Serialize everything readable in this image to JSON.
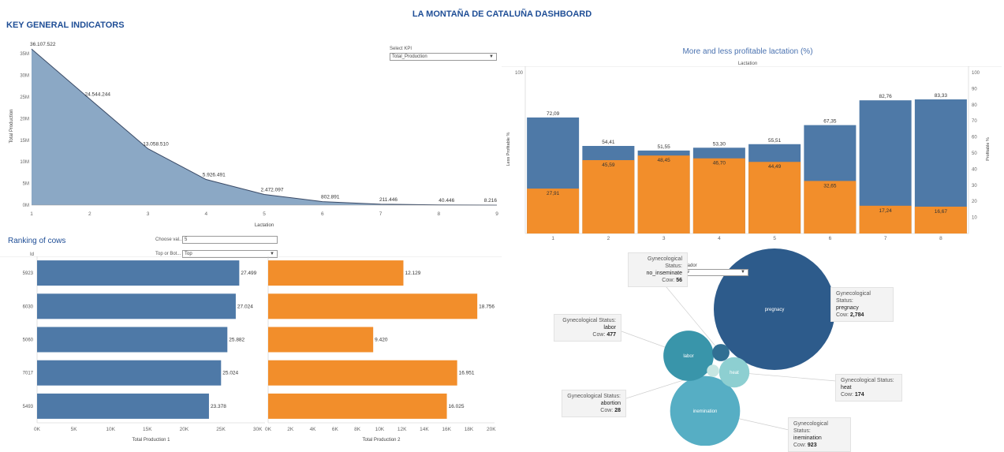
{
  "dashboard": {
    "title": "LA MONTAÑA DE CATALUÑA DASHBOARD"
  },
  "kpi_section": {
    "title": "KEY GENERAL INDICATORS",
    "select_label": "Select KPI",
    "select_value": "Total_Production"
  },
  "ranking_section": {
    "title": "Ranking of cows",
    "choose_label": "Choose val...",
    "choose_value": "5",
    "topbot_label": "Top or Bot...",
    "topbot_value": "Top",
    "id_header": "Id"
  },
  "lactation_section": {
    "title": "More and less profitable lactation (%)",
    "header": "Lactation"
  },
  "bubble_section": {
    "indicator_label": "Indicador",
    "indicator_value": "Cow",
    "field_label": "Gynecological Status:",
    "measure_label": "Cow:"
  },
  "chart_data": [
    {
      "type": "area",
      "x": [
        1,
        2,
        3,
        4,
        5,
        6,
        7,
        8,
        9
      ],
      "values": [
        36107522,
        24544244,
        13058510,
        5926491,
        2472097,
        802891,
        211446,
        40446,
        8216
      ],
      "value_labels": [
        "36.107.522",
        "24.544.244",
        "13.058.510",
        "5.926.491",
        "2.472.097",
        "802.891",
        "211.446",
        "40.446",
        "8.216"
      ],
      "xlabel": "Lactation",
      "ylabel": "Total Production",
      "x_ticks": [
        "1",
        "2",
        "3",
        "4",
        "5",
        "6",
        "7",
        "8",
        "9"
      ],
      "y_ticks": [
        "0M",
        "5M",
        "10M",
        "15M",
        "20M",
        "25M",
        "30M",
        "35M"
      ],
      "ylim": [
        0,
        36500000
      ],
      "color": "#8ba8c5",
      "line_color": "#3a4a66"
    },
    {
      "type": "bar",
      "categories": [
        "1",
        "2",
        "3",
        "4",
        "5",
        "6",
        "7",
        "8"
      ],
      "xlabel": "Lactation",
      "ylabel_left": "Less Profitable %",
      "ylabel_right": "Profitable %",
      "left_ticks": [
        "100"
      ],
      "right_ticks": [
        "10",
        "20",
        "30",
        "40",
        "50",
        "60",
        "70",
        "80",
        "90",
        "100"
      ],
      "ylim": [
        0,
        100
      ],
      "series": [
        {
          "name": "Profitable %",
          "color": "#4e79a7",
          "values": [
            72.09,
            54.41,
            51.55,
            53.3,
            55.51,
            67.35,
            82.76,
            83.33
          ],
          "labels": [
            "72,09",
            "54,41",
            "51,55",
            "53,30",
            "55,51",
            "67,35",
            "82,76",
            "83,33"
          ]
        },
        {
          "name": "Less Profitable %",
          "color": "#f28e2b",
          "values": [
            27.91,
            45.59,
            48.45,
            46.7,
            44.49,
            32.65,
            17.24,
            16.67
          ],
          "labels": [
            "27,91",
            "45,59",
            "48,45",
            "46,70",
            "44,49",
            "32,65",
            "17,24",
            "16,67"
          ]
        }
      ]
    },
    {
      "type": "bar",
      "orientation": "horizontal",
      "categories": [
        "5923",
        "6030",
        "5060",
        "7017",
        "5493"
      ],
      "values": [
        27499,
        27024,
        25882,
        25024,
        23378
      ],
      "labels": [
        "27.499",
        "27.024",
        "25.882",
        "25.024",
        "23.378"
      ],
      "xlabel": "Total Production 1",
      "x_ticks": [
        "0K",
        "5K",
        "10K",
        "15K",
        "20K",
        "25K",
        "30K"
      ],
      "xlim": [
        0,
        31000
      ],
      "color": "#4e79a7"
    },
    {
      "type": "bar",
      "orientation": "horizontal",
      "categories": [
        "5923",
        "6030",
        "5060",
        "7017",
        "5493"
      ],
      "values": [
        12129,
        18756,
        9420,
        16951,
        16025
      ],
      "labels": [
        "12.129",
        "18.756",
        "9.420",
        "16.951",
        "16.025"
      ],
      "xlabel": "Total Production 2",
      "x_ticks": [
        "0K",
        "2K",
        "4K",
        "6K",
        "8K",
        "10K",
        "12K",
        "14K",
        "16K",
        "18K",
        "20K"
      ],
      "xlim": [
        0,
        20300
      ],
      "color": "#f28e2b"
    },
    {
      "type": "bubble",
      "items": [
        {
          "status": "pregnacy",
          "value": 2784,
          "label": "2,784",
          "color": "#2d5b8b",
          "show_name": true
        },
        {
          "status": "inemination",
          "value": 923,
          "label": "923",
          "color": "#56aec4",
          "show_name": true
        },
        {
          "status": "labor",
          "value": 477,
          "label": "477",
          "color": "#3995aa",
          "show_name": true
        },
        {
          "status": "heat",
          "value": 174,
          "label": "174",
          "color": "#8dcfd1",
          "show_name": true
        },
        {
          "status": "no_inseminate",
          "value": 56,
          "label": "56",
          "color": "#316f93",
          "show_name": false
        },
        {
          "status": "abortion",
          "value": 28,
          "label": "28",
          "color": "#c7e6e2",
          "show_name": false
        }
      ]
    }
  ]
}
